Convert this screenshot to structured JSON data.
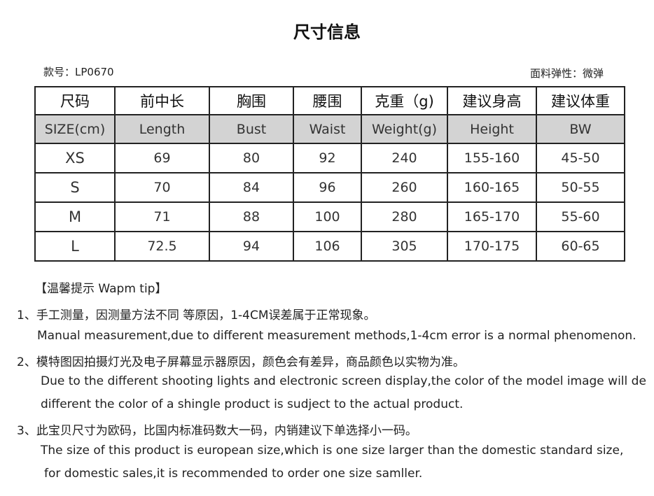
{
  "title": "尺寸信息",
  "style_no": "款号：LP0670",
  "elasticity": "面料弹性：微弹",
  "table": {
    "headers_zh": [
      "尺码",
      "前中长",
      "胸围",
      "腰围",
      "克重（g)",
      "建议身高",
      "建议体重"
    ],
    "headers_en": [
      "SIZE(cm)",
      "Length",
      "Bust",
      "Waist",
      "Weight(g)",
      "Height",
      "BW"
    ],
    "rows": [
      [
        "XS",
        "69",
        "80",
        "92",
        "240",
        "155-160",
        "45-50"
      ],
      [
        "S",
        "70",
        "84",
        "96",
        "260",
        "160-165",
        "50-55"
      ],
      [
        "M",
        "71",
        "88",
        "100",
        "280",
        "165-170",
        "55-60"
      ],
      [
        "L",
        "72.5",
        "94",
        "106",
        "305",
        "170-175",
        "60-65"
      ]
    ]
  },
  "tips": {
    "heading": "【温馨提示 Wapm tip】",
    "lines": [
      "1、手工测量，因测量方法不同 等原因，1-4CM误差属于正常现象。",
      "Manual measurement,due to different measurement methods,1-4cm error is a normal phenomenon.",
      "2、模特图因拍摄灯光及电子屏幕显示器原因，颜色会有差异，商品颜色以实物为准。",
      "Due to the different shooting lights and electronic screen display,the color of the model image will de",
      "different the color of a shingle product is sudject to the actual product.",
      "3、此宝贝尺寸为欧码，比国内标准码数大一码，内销建议下单选择小一码。",
      "The size of this product is european size,which is one size larger than the domestic standard size,",
      "for domestic sales,it is recommended to order one size samller."
    ]
  }
}
